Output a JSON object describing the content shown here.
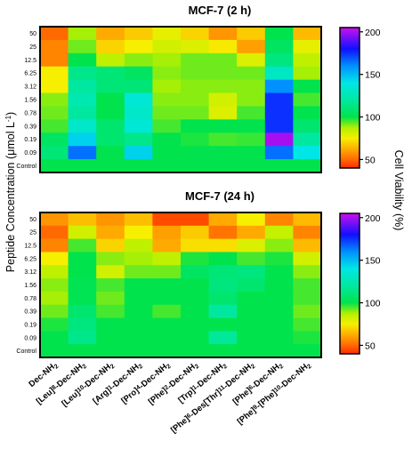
{
  "figure": {
    "ylabel_main": "Peptide Concentration (",
    "ylabel_mu": "μ",
    "ylabel_unit": "mol L",
    "ylabel_exp": "-1",
    "ylabel_close": ")",
    "colorbar_label": "Cell Viability (%)",
    "colorbar_ticks": [
      "200",
      "150",
      "100",
      "50"
    ],
    "colorbar_range": [
      40,
      205
    ],
    "colorscale": [
      {
        "v": 40,
        "c": "#ff2a00"
      },
      {
        "v": 50,
        "c": "#ff6a00"
      },
      {
        "v": 62,
        "c": "#ffaa00"
      },
      {
        "v": 75,
        "c": "#f6ef00"
      },
      {
        "v": 87,
        "c": "#b4f000"
      },
      {
        "v": 100,
        "c": "#00e34c"
      },
      {
        "v": 120,
        "c": "#00e8a0"
      },
      {
        "v": 140,
        "c": "#00e6e6"
      },
      {
        "v": 160,
        "c": "#0090ff"
      },
      {
        "v": 180,
        "c": "#1010ff"
      },
      {
        "v": 205,
        "c": "#cc10ee"
      }
    ]
  },
  "chart_data": [
    {
      "type": "heatmap",
      "title": "MCF-7 (2 h)",
      "ylabel": "Peptide Concentration (μmol L-1)",
      "rows": [
        "50",
        "25",
        "12.5",
        "6.25",
        "3.12",
        "1.56",
        "0.78",
        "0.39",
        "0.19",
        "0.09",
        "Control"
      ],
      "columns": [
        "Dec-NH2",
        "[Leu]8-Dec-NH2",
        "[Leu]10-Dec-NH2",
        "[Arg]1-Dec-NH2",
        "[Pro]4-Dec-NH2",
        "[Phe]2-Dec-NH2",
        "[Trp]1-Dec-NH2",
        "[Phe]6-Des[Thr]11-Dec-NH2",
        "[Phe]6-Dec-NH2",
        "[Phe]9-[Phe]10-Dec-NH2"
      ],
      "values": [
        [
          50,
          88,
          62,
          68,
          78,
          70,
          58,
          68,
          100,
          65
        ],
        [
          55,
          92,
          70,
          75,
          82,
          80,
          74,
          60,
          105,
          78
        ],
        [
          55,
          100,
          85,
          90,
          88,
          92,
          92,
          80,
          112,
          85
        ],
        [
          75,
          115,
          110,
          105,
          90,
          92,
          92,
          92,
          130,
          88
        ],
        [
          75,
          120,
          110,
          110,
          88,
          90,
          90,
          90,
          160,
          100
        ],
        [
          90,
          125,
          100,
          135,
          90,
          90,
          82,
          90,
          175,
          95
        ],
        [
          92,
          120,
          100,
          132,
          92,
          92,
          80,
          95,
          175,
          100
        ],
        [
          95,
          132,
          108,
          135,
          95,
          100,
          100,
          100,
          175,
          108
        ],
        [
          105,
          145,
          108,
          115,
          100,
          98,
          95,
          96,
          200,
          120
        ],
        [
          110,
          165,
          100,
          145,
          100,
          100,
          100,
          100,
          165,
          140
        ],
        [
          100,
          100,
          100,
          100,
          100,
          100,
          100,
          100,
          100,
          100
        ]
      ],
      "colorbar_label": "Cell Viability (%)",
      "colorbar_range": [
        40,
        205
      ]
    },
    {
      "type": "heatmap",
      "title": "MCF-7 (24 h)",
      "ylabel": "Peptide Concentration (μmol L-1)",
      "rows": [
        "50",
        "25",
        "12.5",
        "6.25",
        "3.12",
        "1.56",
        "0.78",
        "0.39",
        "0.19",
        "0.09",
        "Control"
      ],
      "columns": [
        "Dec-NH2",
        "[Leu]8-Dec-NH2",
        "[Leu]10-Dec-NH2",
        "[Arg]1-Dec-NH2",
        "[Pro]4-Dec-NH2",
        "[Phe]2-Dec-NH2",
        "[Trp]1-Dec-NH2",
        "[Phe]6-Des[Thr]11-Dec-NH2",
        "[Phe]6-Dec-NH2",
        "[Phe]9-[Phe]10-Dec-NH2"
      ],
      "values": [
        [
          58,
          66,
          58,
          66,
          45,
          45,
          62,
          75,
          55,
          65
        ],
        [
          50,
          82,
          62,
          75,
          60,
          68,
          52,
          62,
          84,
          55
        ],
        [
          55,
          95,
          70,
          85,
          62,
          72,
          72,
          80,
          90,
          65
        ],
        [
          75,
          100,
          90,
          88,
          85,
          98,
          100,
          95,
          98,
          82
        ],
        [
          85,
          100,
          82,
          92,
          92,
          105,
          110,
          112,
          100,
          90
        ],
        [
          90,
          102,
          95,
          100,
          100,
          100,
          112,
          108,
          100,
          95
        ],
        [
          88,
          102,
          92,
          100,
          100,
          100,
          108,
          100,
          100,
          95
        ],
        [
          92,
          108,
          95,
          100,
          95,
          100,
          120,
          100,
          100,
          92
        ],
        [
          98,
          112,
          100,
          100,
          100,
          100,
          100,
          100,
          100,
          95
        ],
        [
          100,
          115,
          100,
          100,
          100,
          100,
          118,
          100,
          100,
          98
        ],
        [
          100,
          100,
          100,
          100,
          100,
          100,
          100,
          100,
          100,
          100
        ]
      ],
      "colorbar_label": "Cell Viability (%)",
      "colorbar_range": [
        40,
        205
      ]
    }
  ],
  "xaxis": {
    "labels": [
      {
        "parts": [
          [
            "Dec-NH",
            ""
          ],
          [
            "2",
            "sub"
          ]
        ]
      },
      {
        "parts": [
          [
            "[Leu]",
            ""
          ],
          [
            "8",
            "sup"
          ],
          [
            "-Dec-NH",
            ""
          ],
          [
            "2",
            "sub"
          ]
        ]
      },
      {
        "parts": [
          [
            "[Leu]",
            ""
          ],
          [
            "10",
            "sup"
          ],
          [
            "-Dec-NH",
            ""
          ],
          [
            "2",
            "sub"
          ]
        ]
      },
      {
        "parts": [
          [
            "[Arg]",
            ""
          ],
          [
            "1",
            "sup"
          ],
          [
            "-Dec-NH",
            ""
          ],
          [
            "2",
            "sub"
          ]
        ]
      },
      {
        "parts": [
          [
            "[Pro]",
            ""
          ],
          [
            "4",
            "sup"
          ],
          [
            "-Dec-NH",
            ""
          ],
          [
            "2",
            "sub"
          ]
        ]
      },
      {
        "parts": [
          [
            "[Phe]",
            ""
          ],
          [
            "2",
            "sup"
          ],
          [
            "-Dec-NH",
            ""
          ],
          [
            "2",
            "sub"
          ]
        ]
      },
      {
        "parts": [
          [
            "[Trp]",
            ""
          ],
          [
            "1",
            "sup"
          ],
          [
            "-Dec-NH",
            ""
          ],
          [
            "2",
            "sub"
          ]
        ]
      },
      {
        "parts": [
          [
            "[Phe]",
            ""
          ],
          [
            "6",
            "sup"
          ],
          [
            "-Des[Thr]",
            ""
          ],
          [
            "11",
            "sup"
          ],
          [
            "-Dec-NH",
            ""
          ],
          [
            "2",
            "sub"
          ]
        ]
      },
      {
        "parts": [
          [
            "[Phe]",
            ""
          ],
          [
            "6",
            "sup"
          ],
          [
            "-Dec-NH",
            ""
          ],
          [
            "2",
            "sub"
          ]
        ]
      },
      {
        "parts": [
          [
            "[Phe]",
            ""
          ],
          [
            "9",
            "sup"
          ],
          [
            "-[Phe]",
            ""
          ],
          [
            "10",
            "sup"
          ],
          [
            "-Dec-NH",
            ""
          ],
          [
            "2",
            "sub"
          ]
        ]
      }
    ]
  }
}
